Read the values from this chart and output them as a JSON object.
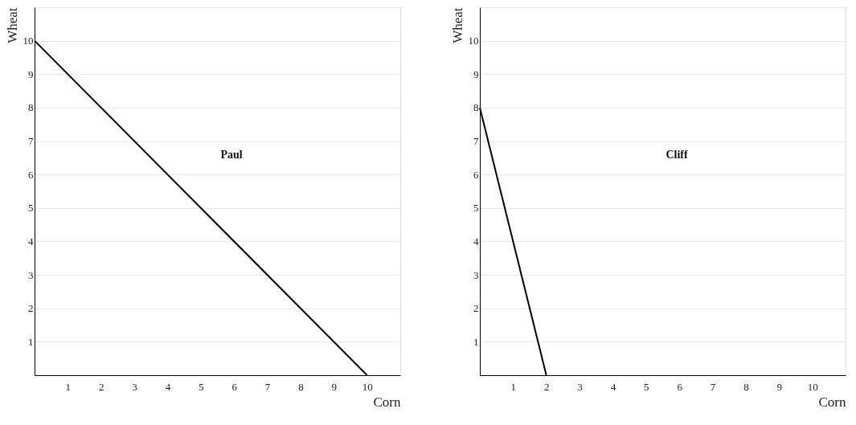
{
  "chart_data": [
    {
      "type": "line",
      "xlabel": "Corn",
      "ylabel": "Wheat",
      "annotations": [
        "Paul"
      ],
      "series": [
        {
          "color": "#000000",
          "x": [
            0,
            10
          ],
          "values": [
            10,
            0
          ]
        }
      ],
      "xlim": [
        0,
        11
      ],
      "ylim": [
        0,
        11
      ],
      "xticks": [
        1,
        2,
        3,
        4,
        5,
        6,
        7,
        8,
        9,
        10
      ],
      "yticks": [
        1,
        2,
        3,
        4,
        5,
        6,
        7,
        8,
        9,
        10,
        {
          "value": 11,
          "label": null
        }
      ],
      "grid": "y",
      "marker": "none",
      "line_style": "solid"
    },
    {
      "type": "line",
      "xlabel": "Corn",
      "ylabel": "Wheat",
      "annotations": [
        "Cliff"
      ],
      "series": [
        {
          "color": "#000000",
          "x": [
            0,
            2
          ],
          "values": [
            8,
            0
          ]
        }
      ],
      "xlim": [
        0,
        11
      ],
      "ylim": [
        0,
        11
      ],
      "xticks": [
        1,
        2,
        3,
        4,
        5,
        6,
        7,
        8,
        9,
        10
      ],
      "yticks": [
        1,
        2,
        3,
        4,
        5,
        6,
        7,
        8,
        9,
        10,
        {
          "value": 11,
          "label": null
        }
      ],
      "grid": "y",
      "marker": "none",
      "line_style": "solid"
    }
  ]
}
